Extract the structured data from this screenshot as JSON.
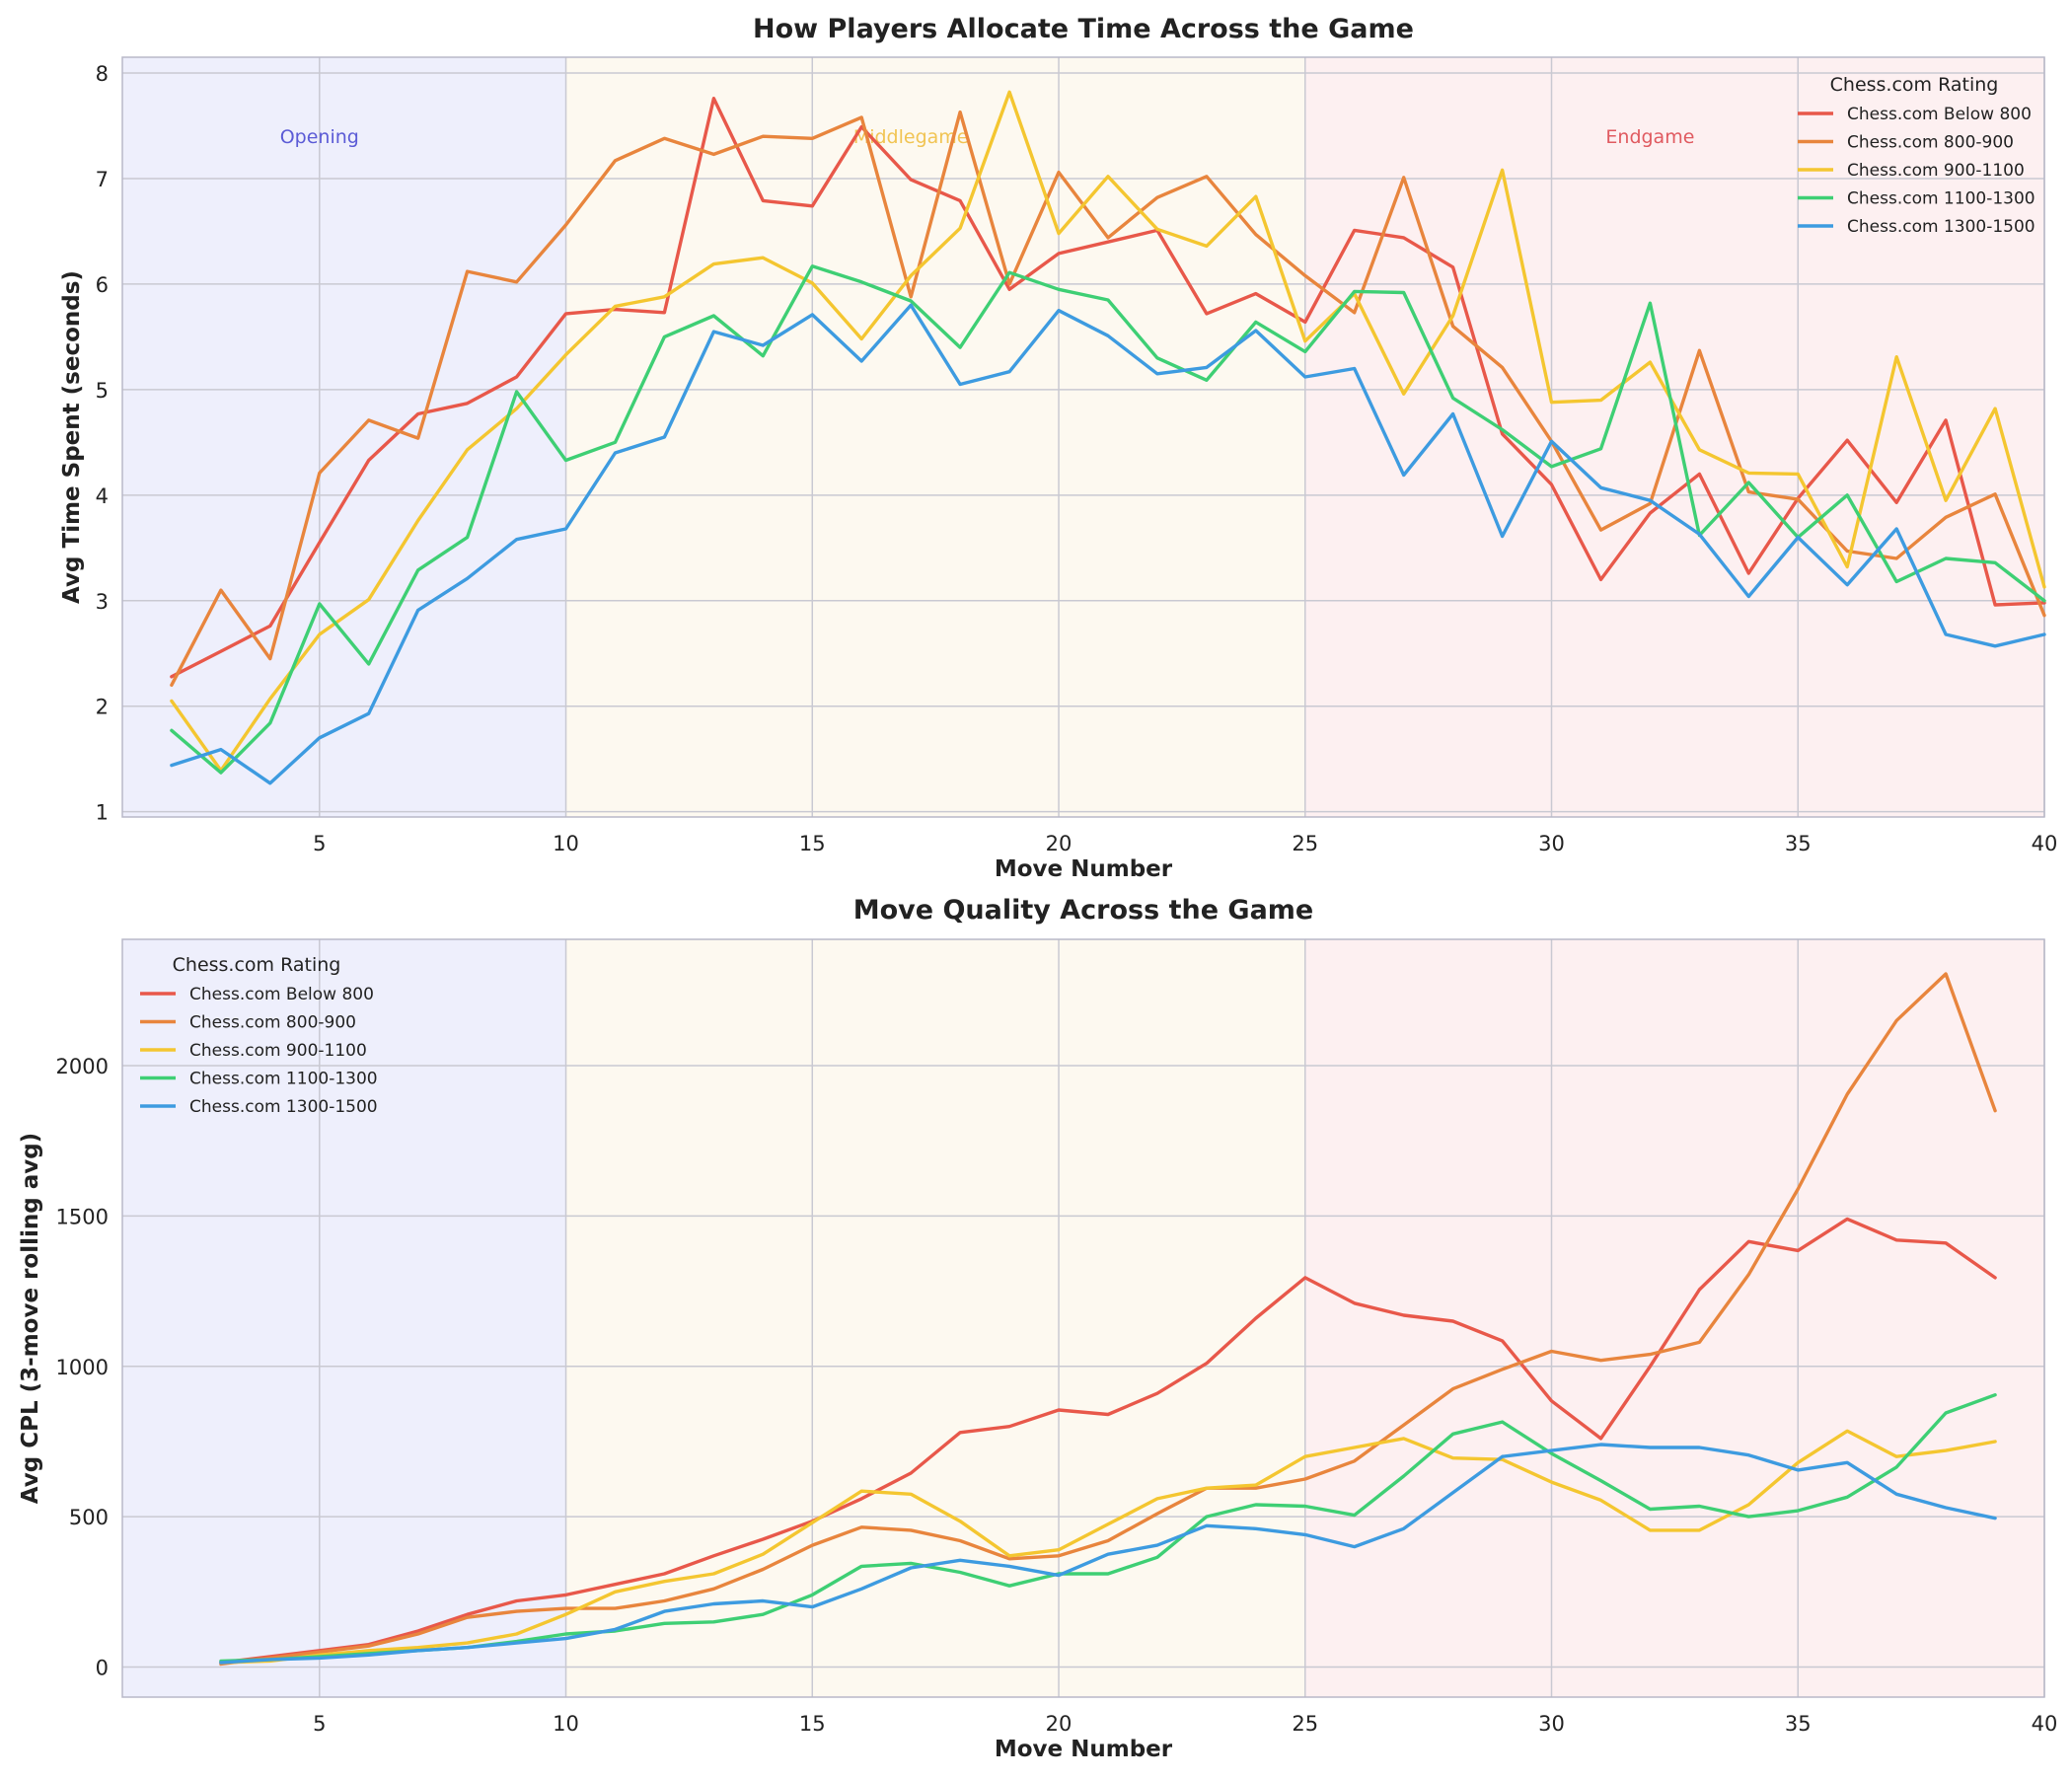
{
  "colors": {
    "Chess.com Below 800": "#e8584a",
    "Chess.com 800-900": "#e8853d",
    "Chess.com 900-1100": "#f4c630",
    "Chess.com 1100-1300": "#3ecf74",
    "Chess.com 1300-1500": "#3d9be0",
    "phase_opening": "#5b5bd6",
    "phase_middlegame": "#f1c453",
    "phase_endgame": "#e05a60",
    "bg_opening": "#eeeffc",
    "bg_middlegame": "#fdf9f0",
    "bg_endgame": "#fdf0f1"
  },
  "chart_data": [
    {
      "type": "line",
      "title": "How Players Allocate Time Across the Game",
      "xlabel": "Move Number",
      "ylabel": "Avg Time Spent (seconds)",
      "xlim": [
        1,
        40
      ],
      "ylim": [
        0.95,
        8.15
      ],
      "xticks": [
        5,
        10,
        15,
        20,
        25,
        30,
        35,
        40
      ],
      "yticks": [
        1,
        2,
        3,
        4,
        5,
        6,
        7,
        8
      ],
      "grid": true,
      "legend": {
        "title": "Chess.com Rating",
        "position": "top-right"
      },
      "phases": [
        {
          "label": "Opening",
          "start": 1,
          "end": 10,
          "label_x": 5,
          "label_y": 7.4
        },
        {
          "label": "Middlegame",
          "start": 10,
          "end": 25,
          "label_x": 17,
          "label_y": 7.4
        },
        {
          "label": "Endgame",
          "start": 25,
          "end": 40,
          "label_x": 32,
          "label_y": 7.4
        }
      ],
      "x": [
        2,
        3,
        4,
        5,
        6,
        7,
        8,
        9,
        10,
        11,
        12,
        13,
        14,
        15,
        16,
        17,
        18,
        19,
        20,
        21,
        22,
        23,
        24,
        25,
        26,
        27,
        28,
        29,
        30,
        31,
        32,
        33,
        34,
        35,
        36,
        37,
        38,
        39,
        40
      ],
      "series": [
        {
          "name": "Chess.com Below 800",
          "values": [
            2.28,
            2.52,
            2.76,
            3.55,
            4.33,
            4.77,
            4.87,
            5.12,
            5.72,
            5.76,
            5.73,
            7.76,
            6.79,
            6.74,
            7.49,
            6.99,
            6.79,
            5.95,
            6.29,
            6.4,
            6.51,
            5.72,
            5.91,
            5.64,
            6.51,
            6.44,
            6.16,
            4.58,
            4.1,
            3.2,
            3.83,
            4.2,
            3.26,
            3.97,
            4.52,
            3.93,
            4.71,
            2.96,
            2.98
          ]
        },
        {
          "name": "Chess.com 800-900",
          "values": [
            2.2,
            3.1,
            2.45,
            4.21,
            4.71,
            4.54,
            6.12,
            6.02,
            6.56,
            7.17,
            7.38,
            7.23,
            7.4,
            7.38,
            7.58,
            5.88,
            7.63,
            6.0,
            7.06,
            6.44,
            6.82,
            7.02,
            6.47,
            6.08,
            5.73,
            7.01,
            5.6,
            5.21,
            4.51,
            3.67,
            3.92,
            5.37,
            4.03,
            3.96,
            3.47,
            3.4,
            3.79,
            4.01,
            2.86
          ]
        },
        {
          "name": "Chess.com 900-1100",
          "values": [
            2.05,
            1.39,
            2.07,
            2.68,
            3.01,
            3.76,
            4.43,
            4.82,
            5.33,
            5.79,
            5.88,
            6.19,
            6.25,
            6.01,
            5.48,
            6.08,
            6.53,
            7.82,
            6.48,
            7.02,
            6.52,
            6.36,
            6.83,
            5.46,
            5.91,
            4.96,
            5.7,
            7.08,
            4.88,
            4.9,
            5.26,
            4.43,
            4.21,
            4.2,
            3.32,
            5.31,
            3.95,
            4.82,
            3.13
          ]
        },
        {
          "name": "Chess.com 1100-1300",
          "values": [
            1.77,
            1.37,
            1.84,
            2.97,
            2.4,
            3.29,
            3.6,
            4.98,
            4.33,
            4.5,
            5.5,
            5.7,
            5.32,
            6.17,
            6.02,
            5.84,
            5.4,
            6.11,
            5.95,
            5.85,
            5.3,
            5.09,
            5.64,
            5.36,
            5.93,
            5.92,
            4.92,
            4.62,
            4.27,
            4.44,
            5.82,
            3.62,
            4.12,
            3.6,
            4.0,
            3.18,
            3.4,
            3.36,
            3.0
          ]
        },
        {
          "name": "Chess.com 1300-1500",
          "values": [
            1.44,
            1.59,
            1.27,
            1.7,
            1.93,
            2.91,
            3.21,
            3.58,
            3.68,
            4.4,
            4.55,
            5.55,
            5.42,
            5.71,
            5.27,
            5.8,
            5.05,
            5.17,
            5.75,
            5.51,
            5.15,
            5.21,
            5.56,
            5.12,
            5.2,
            4.19,
            4.77,
            3.61,
            4.51,
            4.07,
            3.95,
            3.63,
            3.04,
            3.6,
            3.15,
            3.68,
            2.68,
            2.57,
            2.68
          ]
        }
      ]
    },
    {
      "type": "line",
      "title": "Move Quality Across the Game",
      "xlabel": "Move Number",
      "ylabel": "Avg CPL (3-move rolling avg)",
      "xlim": [
        1,
        40
      ],
      "ylim": [
        -100,
        2420
      ],
      "xticks": [
        5,
        10,
        15,
        20,
        25,
        30,
        35,
        40
      ],
      "yticks": [
        0,
        500,
        1000,
        1500,
        2000
      ],
      "grid": true,
      "legend": {
        "title": "Chess.com Rating",
        "position": "top-left"
      },
      "phases": [
        {
          "start": 1,
          "end": 10
        },
        {
          "start": 10,
          "end": 25
        },
        {
          "start": 25,
          "end": 40
        }
      ],
      "x": [
        3,
        4,
        5,
        6,
        7,
        8,
        9,
        10,
        11,
        12,
        13,
        14,
        15,
        16,
        17,
        18,
        19,
        20,
        21,
        22,
        23,
        24,
        25,
        26,
        27,
        28,
        29,
        30,
        31,
        32,
        33,
        34,
        35,
        36,
        37,
        38,
        39
      ],
      "series": [
        {
          "name": "Chess.com Below 800",
          "values": [
            15,
            35,
            55,
            75,
            120,
            175,
            220,
            240,
            275,
            310,
            370,
            425,
            485,
            560,
            645,
            780,
            800,
            855,
            840,
            910,
            1010,
            1160,
            1295,
            1210,
            1170,
            1150,
            1085,
            885,
            760,
            1000,
            1255,
            1415,
            1385,
            1490,
            1420,
            1410,
            1295
          ]
        },
        {
          "name": "Chess.com 800-900",
          "values": [
            10,
            30,
            50,
            70,
            110,
            165,
            185,
            195,
            195,
            220,
            260,
            325,
            405,
            465,
            455,
            420,
            360,
            370,
            420,
            510,
            595,
            595,
            625,
            685,
            805,
            925,
            990,
            1050,
            1020,
            1040,
            1080,
            1305,
            1590,
            1905,
            2150,
            2305,
            1850
          ]
        },
        {
          "name": "Chess.com 900-1100",
          "values": [
            15,
            20,
            40,
            55,
            65,
            80,
            110,
            175,
            250,
            285,
            310,
            375,
            480,
            585,
            575,
            485,
            370,
            390,
            475,
            560,
            595,
            605,
            700,
            730,
            760,
            695,
            690,
            615,
            555,
            455,
            455,
            540,
            680,
            785,
            700,
            720,
            750
          ]
        },
        {
          "name": "Chess.com 1100-1300",
          "values": [
            20,
            25,
            35,
            45,
            55,
            65,
            85,
            110,
            120,
            145,
            150,
            175,
            240,
            335,
            345,
            315,
            270,
            310,
            310,
            365,
            500,
            540,
            535,
            505,
            635,
            775,
            815,
            710,
            620,
            525,
            535,
            500,
            520,
            565,
            665,
            845,
            905
          ]
        },
        {
          "name": "Chess.com 1300-1500",
          "values": [
            15,
            25,
            30,
            40,
            55,
            65,
            80,
            95,
            125,
            185,
            210,
            220,
            200,
            260,
            330,
            355,
            335,
            305,
            375,
            405,
            470,
            460,
            440,
            400,
            460,
            580,
            700,
            720,
            740,
            730,
            730,
            705,
            655,
            680,
            575,
            530,
            495
          ]
        }
      ]
    }
  ]
}
